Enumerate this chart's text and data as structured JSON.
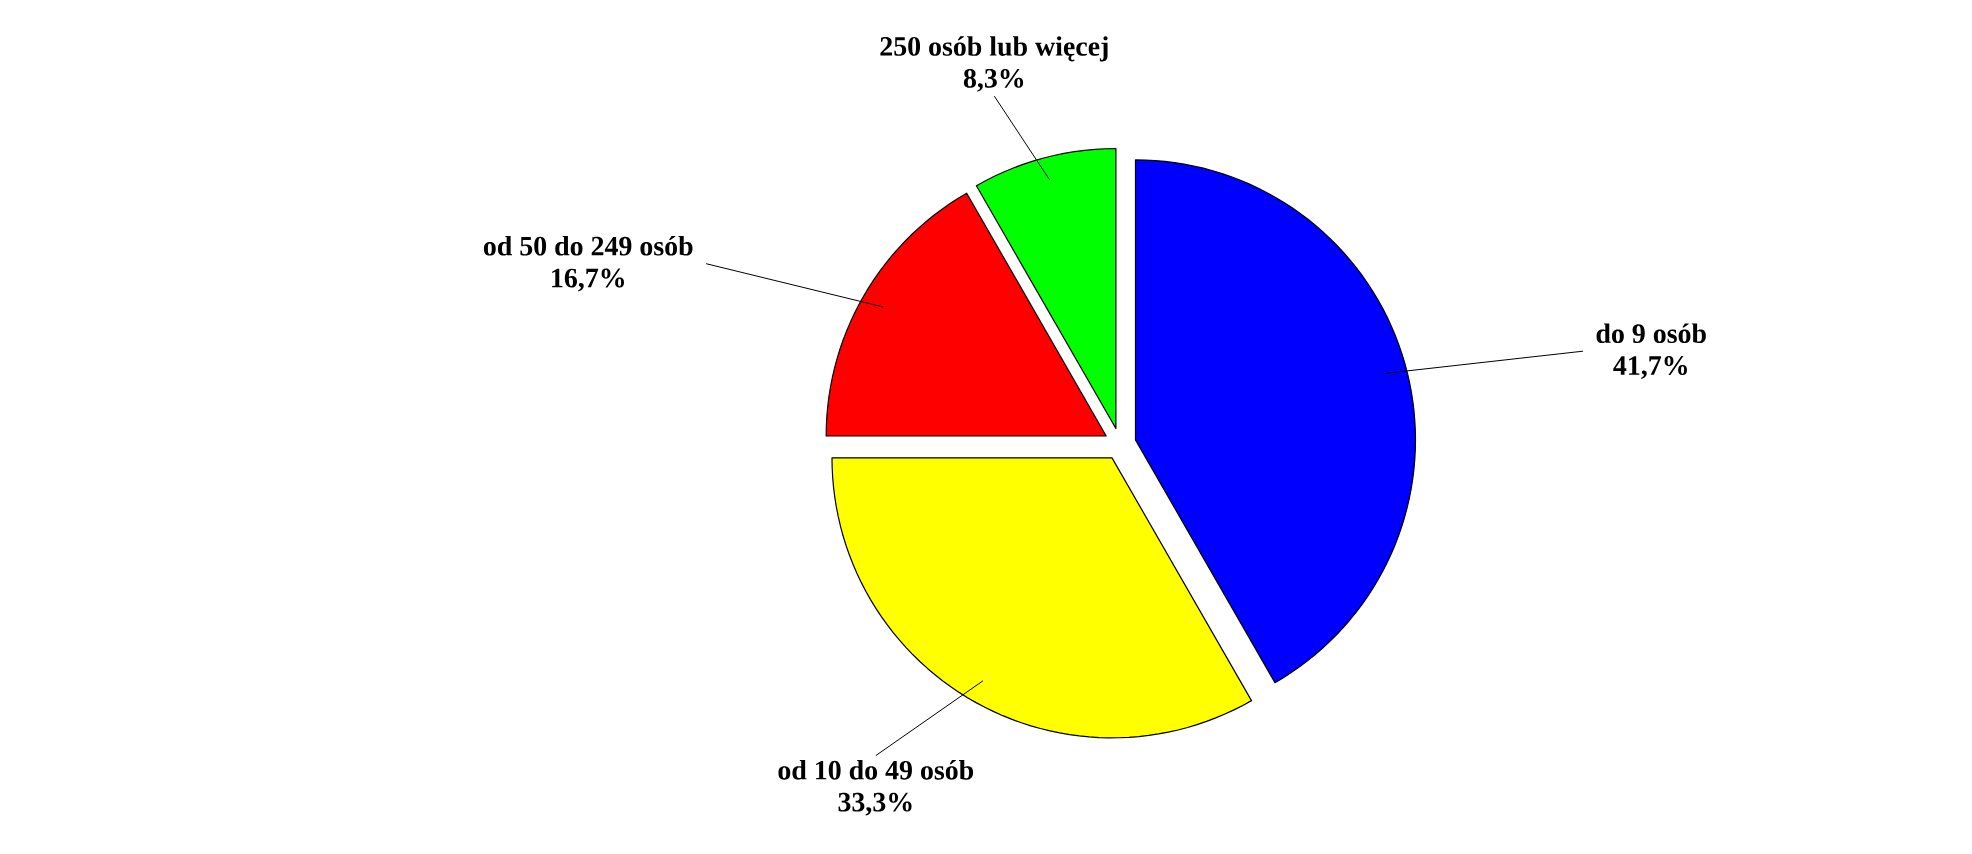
{
  "chart_data": {
    "type": "pie",
    "categories": [
      "do 9 osób",
      "od 10 do 49 osób",
      "od 50 do 249 osób",
      "250 osób lub więcej"
    ],
    "values": [
      41.7,
      33.3,
      16.7,
      8.3
    ],
    "colors": [
      "#0000ff",
      "#ffff00",
      "#ff0000",
      "#00ff00"
    ],
    "value_labels": [
      "41,7%",
      "33,3%",
      "16,7%",
      "8,3%"
    ]
  }
}
